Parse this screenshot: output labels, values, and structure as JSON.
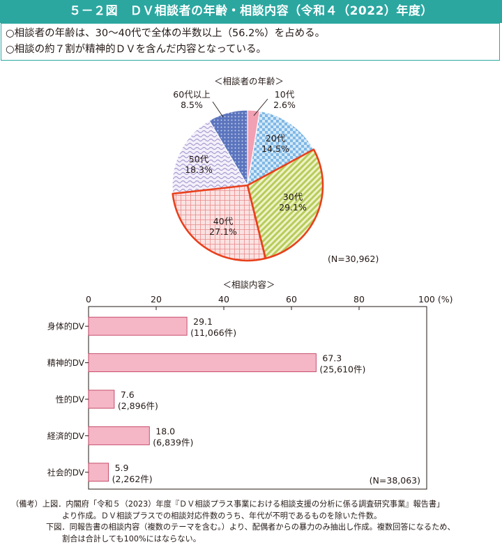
{
  "header": {
    "title": "５－２図　ＤＶ相談者の年齢・相談内容（令和４（2022）年度）"
  },
  "summary": [
    "○相談者の年齢は、30～40代で全体の半数以上（56.2%）を占める。",
    "○相談の約７割が精神的ＤＶを含んだ内容となっている。"
  ],
  "chart_data": [
    {
      "type": "pie",
      "title": "＜相談者の年齢＞",
      "note": "(N=30,962)",
      "slices": [
        {
          "label": "10代",
          "value": 2.6,
          "value_label": "2.6%",
          "color": "#f2a0b3",
          "pattern": "solid"
        },
        {
          "label": "20代",
          "value": 14.5,
          "value_label": "14.5%",
          "color": "#8cc3ea",
          "pattern": "checker"
        },
        {
          "label": "30代",
          "value": 29.1,
          "value_label": "29.1%",
          "color": "#c8d77a",
          "pattern": "diagonal",
          "highlight": true
        },
        {
          "label": "40代",
          "value": 27.1,
          "value_label": "27.1%",
          "color": "#f0a8a8",
          "pattern": "grid",
          "highlight": true
        },
        {
          "label": "50代",
          "value": 18.3,
          "value_label": "18.3%",
          "color": "#b8aed8",
          "pattern": "wave"
        },
        {
          "label": "60代以上",
          "value": 8.5,
          "value_label": "8.5%",
          "color": "#6f86c8",
          "pattern": "dots"
        }
      ],
      "highlight_color": "#e8401c"
    },
    {
      "type": "bar",
      "orientation": "horizontal",
      "title": "＜相談内容＞",
      "note": "(N=38,063)",
      "unit_label": "100 (%)",
      "x_ticks": [
        "0",
        "20",
        "40",
        "60",
        "80"
      ],
      "xlim": [
        0,
        100
      ],
      "bar_color": "#f5b6c6",
      "bar_stroke": "#c0405e",
      "categories": [
        "身体的DV",
        "精神的DV",
        "性的DV",
        "経済的DV",
        "社会的DV"
      ],
      "values": [
        29.1,
        67.3,
        7.6,
        18.0,
        5.9
      ],
      "value_labels": [
        "29.1",
        "67.3",
        "7.6",
        "18.0",
        "5.9"
      ],
      "count_labels": [
        "(11,066件)",
        "(25,610件)",
        "(2,896件)",
        "(6,839件)",
        "(2,262件)"
      ]
    }
  ],
  "notes": {
    "line1": "（備考）上図．内閣府「令和５（2023）年度『ＤＶ相談プラス事業における相談支援の分析に係る調査研究事業』報告書」",
    "line2": "より作成。ＤＶ相談プラスでの相談対応件数のうち、年代が不明であるものを除いた件数。",
    "line3": "下図．同報告書の相談内容（複数のテーマを含む。）より、配偶者からの暴力のみ抽出し作成。複数回答になるため、",
    "line4": "割合は合計しても100%にはならない。"
  }
}
